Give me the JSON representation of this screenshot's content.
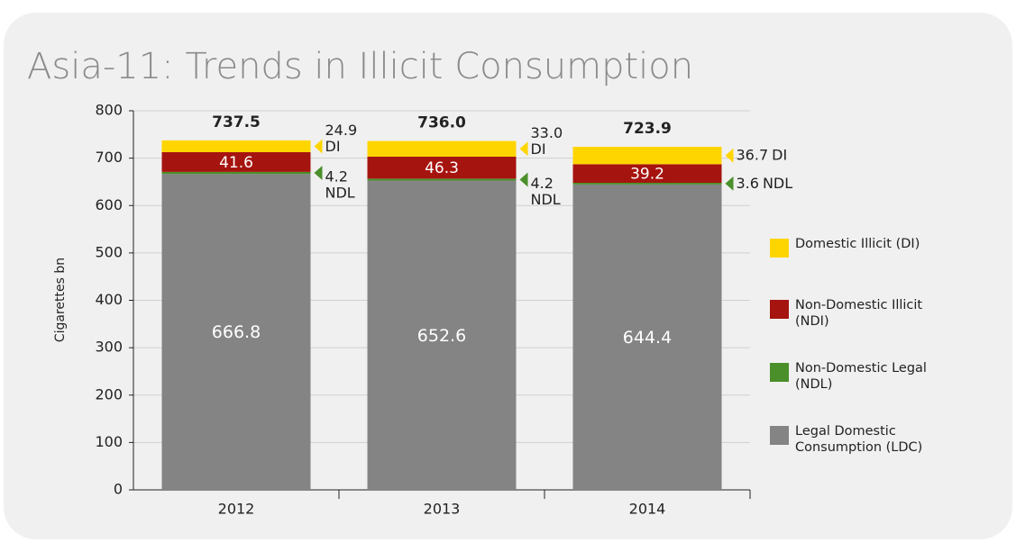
{
  "chart_data": {
    "type": "stacked_bar",
    "title": "Asia-11: Trends in Illicit Consumption",
    "y_label": "Cigarettes bn",
    "categories": [
      "2012",
      "2013",
      "2014"
    ],
    "series": [
      {
        "name": "Legal Domestic Consumption (LDC)",
        "color": "#848484",
        "values": [
          666.8,
          652.6,
          644.4
        ]
      },
      {
        "name": "Non-Domestic Legal (NDL)",
        "short": "NDL",
        "color": "#4a8f2a",
        "values": [
          4.2,
          4.2,
          3.6
        ]
      },
      {
        "name": "Non-Domestic Illicit (NDI)",
        "color": "#a6140f",
        "values": [
          41.6,
          46.3,
          39.2
        ]
      },
      {
        "name": "Domestic Illicit (DI)",
        "short": "DI",
        "color": "#ffd500",
        "values": [
          24.9,
          33.0,
          36.7
        ],
        "value_labels": [
          "24.9",
          "33.0",
          "36.7"
        ]
      }
    ],
    "totals": {
      "values": [
        737.5,
        736.0,
        723.9
      ],
      "value_labels": [
        "737.5",
        "736.0",
        "723.9"
      ]
    },
    "ylim": [
      0,
      800
    ],
    "yticks": [
      0,
      100,
      200,
      300,
      400,
      500,
      600,
      700,
      800
    ],
    "grid": true
  }
}
